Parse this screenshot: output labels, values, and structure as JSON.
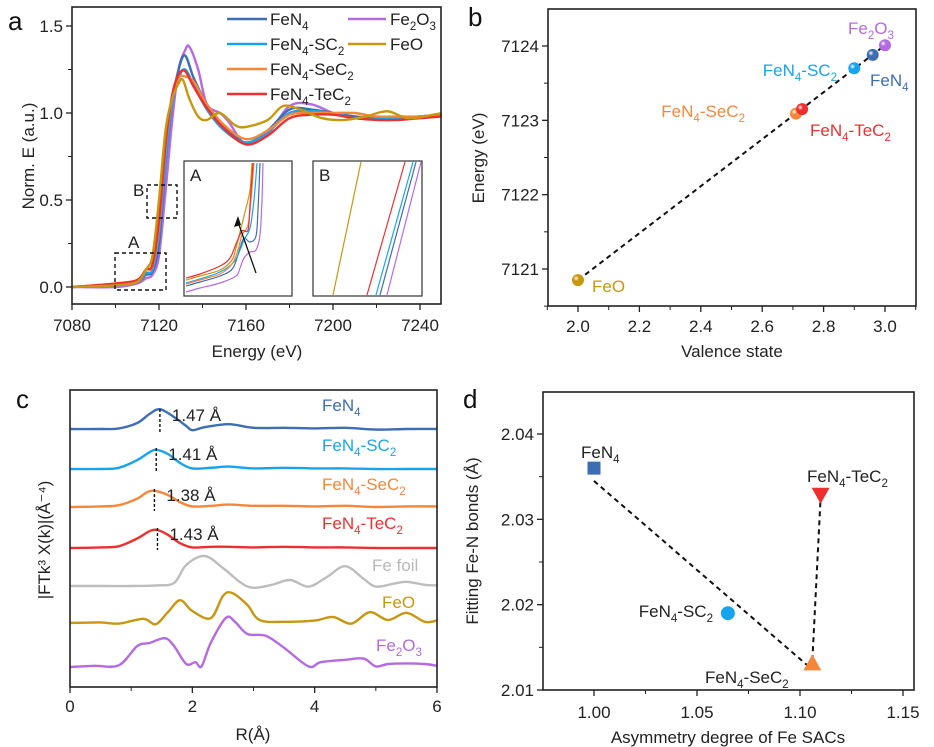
{
  "colors": {
    "FeN4": "#3d6db3",
    "FeN4-SC2": "#16a4ee",
    "FeN4-SeC2": "#f5873a",
    "FeN4-TeC2": "#ee2f2f",
    "Fe2O3": "#b56ae2",
    "FeO": "#c9970f",
    "Fe foil": "#bdbdbd",
    "axis": "#222222"
  },
  "chart_data": [
    {
      "panel": "a",
      "type": "line",
      "xlabel": "Energy (eV)",
      "ylabel": "Norm. E (a.u.)",
      "xlim": [
        7080,
        7250
      ],
      "ylim": [
        -0.1,
        1.6
      ],
      "xticks": [
        "7080",
        "7120",
        "7160",
        "7200",
        "7240"
      ],
      "xtick_values": [
        7080,
        7120,
        7160,
        7200,
        7240
      ],
      "yticks": [
        "0.0",
        "0.5",
        "1.0",
        "1.5"
      ],
      "ytick_values": [
        0.0,
        0.5,
        1.0,
        1.5
      ],
      "legend": [
        "FeN4",
        "FeN4-SC2",
        "FeN4-SeC2",
        "FeN4-TeC2",
        "Fe2O3",
        "FeO"
      ],
      "legend_position": "top-right",
      "series": [
        {
          "name": "FeN4",
          "x": [
            7080,
            7100,
            7110,
            7114,
            7117,
            7120,
            7123,
            7126,
            7129,
            7132,
            7136,
            7142,
            7150,
            7160,
            7170,
            7180,
            7190,
            7200,
            7210,
            7220,
            7230,
            7240,
            7250
          ],
          "y": [
            0,
            0.01,
            0.03,
            0.07,
            0.09,
            0.25,
            0.7,
            1.05,
            1.25,
            1.33,
            1.2,
            1.05,
            0.92,
            0.83,
            0.9,
            1.02,
            1.02,
            1.0,
            0.98,
            0.97,
            0.97,
            0.98,
            0.99
          ]
        },
        {
          "name": "FeN4-SC2",
          "x": [
            7080,
            7100,
            7110,
            7114,
            7117,
            7120,
            7123,
            7126,
            7129,
            7132,
            7136,
            7142,
            7150,
            7160,
            7170,
            7180,
            7190,
            7200,
            7210,
            7220,
            7230,
            7240,
            7250
          ],
          "y": [
            0,
            0.01,
            0.03,
            0.08,
            0.1,
            0.3,
            0.72,
            1.05,
            1.2,
            1.25,
            1.16,
            1.02,
            0.9,
            0.83,
            0.89,
            1.0,
            1.01,
            1.0,
            0.97,
            0.97,
            0.97,
            0.98,
            0.99
          ]
        },
        {
          "name": "FeN4-SeC2",
          "x": [
            7080,
            7100,
            7110,
            7114,
            7117,
            7120,
            7123,
            7126,
            7129,
            7132,
            7136,
            7142,
            7150,
            7160,
            7170,
            7180,
            7190,
            7200,
            7210,
            7220,
            7230,
            7240,
            7250
          ],
          "y": [
            0,
            0.02,
            0.04,
            0.1,
            0.12,
            0.35,
            0.8,
            1.08,
            1.2,
            1.21,
            1.18,
            1.05,
            0.93,
            0.85,
            0.9,
            0.99,
            1.0,
            1.0,
            1.0,
            0.98,
            0.98,
            0.98,
            0.99
          ]
        },
        {
          "name": "FeN4-TeC2",
          "x": [
            7080,
            7100,
            7110,
            7114,
            7117,
            7120,
            7123,
            7126,
            7129,
            7132,
            7136,
            7142,
            7150,
            7160,
            7170,
            7180,
            7190,
            7200,
            7210,
            7220,
            7230,
            7240,
            7250
          ],
          "y": [
            0,
            0.02,
            0.04,
            0.1,
            0.13,
            0.38,
            0.82,
            1.1,
            1.22,
            1.24,
            1.15,
            1.03,
            0.91,
            0.82,
            0.87,
            0.97,
            0.99,
            0.99,
            0.97,
            0.96,
            0.96,
            0.97,
            0.98
          ]
        },
        {
          "name": "Fe2O3",
          "x": [
            7080,
            7100,
            7110,
            7114,
            7117,
            7120,
            7123,
            7126,
            7129,
            7132,
            7134,
            7138,
            7142,
            7148,
            7152,
            7160,
            7170,
            7180,
            7190,
            7200,
            7210,
            7220,
            7230,
            7240,
            7250
          ],
          "y": [
            0,
            0.0,
            0.02,
            0.05,
            0.07,
            0.18,
            0.55,
            0.95,
            1.25,
            1.36,
            1.38,
            1.25,
            1.05,
            1.0,
            0.95,
            0.82,
            0.88,
            1.04,
            1.05,
            1.0,
            0.97,
            0.97,
            0.97,
            0.98,
            0.99
          ]
        },
        {
          "name": "FeO",
          "x": [
            7080,
            7100,
            7110,
            7114,
            7117,
            7120,
            7123,
            7126,
            7129,
            7131,
            7134,
            7138,
            7142,
            7148,
            7155,
            7160,
            7170,
            7177,
            7185,
            7195,
            7205,
            7215,
            7225,
            7235,
            7250
          ],
          "y": [
            0,
            0.01,
            0.03,
            0.1,
            0.18,
            0.5,
            0.9,
            1.08,
            1.17,
            1.19,
            1.08,
            0.98,
            0.96,
            1.0,
            0.93,
            0.92,
            0.96,
            1.04,
            1.02,
            0.97,
            0.96,
            0.98,
            1.01,
            0.97,
            1.0
          ]
        }
      ],
      "insets": [
        {
          "label": "A",
          "annotation": "arrow"
        },
        {
          "label": "B"
        }
      ],
      "boxes": [
        "A",
        "B"
      ]
    },
    {
      "panel": "b",
      "type": "scatter",
      "xlabel": "Valence state",
      "ylabel": "Energy (eV)",
      "xlim": [
        1.9,
        3.1
      ],
      "ylim": [
        7120.5,
        7124.5
      ],
      "xticks": [
        "2.0",
        "2.2",
        "2.4",
        "2.6",
        "2.8",
        "3.0"
      ],
      "xtick_values": [
        2.0,
        2.2,
        2.4,
        2.6,
        2.8,
        3.0
      ],
      "yticks": [
        "7121",
        "7122",
        "7123",
        "7124"
      ],
      "ytick_values": [
        7121,
        7122,
        7123,
        7124
      ],
      "points": [
        {
          "name": "FeO",
          "x": 2.0,
          "y": 7120.85
        },
        {
          "name": "FeN4-SeC2",
          "x": 2.71,
          "y": 7123.09
        },
        {
          "name": "FeN4-TeC2",
          "x": 2.73,
          "y": 7123.15
        },
        {
          "name": "FeN4-SC2",
          "x": 2.9,
          "y": 7123.7
        },
        {
          "name": "FeN4",
          "x": 2.96,
          "y": 7123.88
        },
        {
          "name": "Fe2O3",
          "x": 3.0,
          "y": 7124.01
        }
      ],
      "fit_line": {
        "from": [
          2.0,
          7120.85
        ],
        "to": [
          3.0,
          7124.01
        ],
        "style": "dashed"
      }
    },
    {
      "panel": "c",
      "type": "line",
      "xlabel": "R(Å)",
      "ylabel": "|FTk³ X(k)|(Å⁻⁴)",
      "xlim": [
        0,
        6
      ],
      "xticks": [
        "0",
        "2",
        "4",
        "6"
      ],
      "xtick_values": [
        0,
        2,
        4,
        6
      ],
      "annotations": [
        "1.47 Å",
        "1.41 Å",
        "1.38 Å",
        "1.43 Å"
      ],
      "peak_positions": [
        1.47,
        1.41,
        1.38,
        1.43
      ],
      "series": [
        {
          "name": "FeN4",
          "label": "FeN4",
          "x": [
            0,
            0.5,
            0.8,
            1.1,
            1.3,
            1.47,
            1.7,
            1.9,
            2.0,
            2.2,
            2.6,
            3.0,
            3.5,
            4.0,
            4.5,
            5.0,
            5.5,
            6.0
          ],
          "y": [
            0,
            0,
            0.01,
            0.1,
            0.25,
            0.33,
            0.2,
            0.05,
            -0.02,
            0.03,
            0.08,
            0.02,
            0.02,
            0.01,
            0.02,
            -0.01,
            0.0,
            0.0
          ]
        },
        {
          "name": "FeN4-SC2",
          "label": "FeN4-SC2",
          "x": [
            0,
            0.5,
            0.8,
            1.1,
            1.3,
            1.41,
            1.6,
            1.8,
            2.0,
            2.3,
            2.6,
            3.0,
            3.5,
            4.0,
            4.5,
            5.0,
            5.5,
            6.0
          ],
          "y": [
            0,
            0,
            0.02,
            0.15,
            0.28,
            0.32,
            0.25,
            0.1,
            0.01,
            0.02,
            0.04,
            0.01,
            0.02,
            0.01,
            0.01,
            0.0,
            0.0,
            0.0
          ]
        },
        {
          "name": "FeN4-SeC2",
          "label": "FeN4-SeC2",
          "x": [
            0,
            0.5,
            0.8,
            1.1,
            1.25,
            1.38,
            1.6,
            1.8,
            2.0,
            2.3,
            2.6,
            3.0,
            3.5,
            4.0,
            4.5,
            5.0,
            5.5,
            6.0
          ],
          "y": [
            0,
            0.01,
            0.03,
            0.14,
            0.24,
            0.27,
            0.2,
            0.08,
            0.01,
            0.02,
            0.04,
            0.02,
            0.02,
            0.01,
            0.02,
            0.0,
            0.01,
            0.01
          ]
        },
        {
          "name": "FeN4-TeC2",
          "label": "FeN4-TeC2",
          "x": [
            0,
            0.5,
            0.8,
            1.1,
            1.3,
            1.43,
            1.6,
            1.8,
            2.0,
            2.3,
            2.6,
            3.0,
            3.5,
            4.0,
            4.5,
            5.0,
            5.5,
            6.0
          ],
          "y": [
            0,
            0.01,
            0.03,
            0.16,
            0.28,
            0.3,
            0.22,
            0.08,
            0.01,
            0.02,
            0.02,
            0.01,
            0.02,
            0.01,
            0.01,
            0.0,
            0.0,
            0.0
          ]
        },
        {
          "name": "Fe foil",
          "label": "Fe foil",
          "x": [
            0,
            0.5,
            1.0,
            1.4,
            1.7,
            1.9,
            2.2,
            2.5,
            2.8,
            3.0,
            3.3,
            3.6,
            3.9,
            4.2,
            4.5,
            4.8,
            5.0,
            5.3,
            5.5,
            5.8,
            6.0
          ],
          "y": [
            0,
            0,
            0.0,
            0.01,
            0.05,
            0.35,
            0.5,
            0.3,
            0.05,
            -0.03,
            0.02,
            0.1,
            -0.01,
            0.15,
            0.33,
            0.12,
            -0.01,
            0.04,
            0.07,
            0.02,
            0.01
          ]
        },
        {
          "name": "FeO",
          "label": "FeO",
          "x": [
            0,
            0.5,
            0.8,
            1.2,
            1.4,
            1.6,
            1.8,
            2.0,
            2.3,
            2.5,
            2.65,
            2.9,
            3.1,
            3.5,
            4.0,
            4.3,
            4.6,
            4.9,
            5.2,
            5.5,
            5.8,
            6.0
          ],
          "y": [
            0,
            0.01,
            -0.01,
            0.07,
            -0.02,
            0.18,
            0.38,
            0.2,
            0.08,
            0.45,
            0.5,
            0.3,
            0.05,
            0.02,
            0.04,
            0.1,
            -0.01,
            0.18,
            0.05,
            0.17,
            0.02,
            0.04
          ]
        },
        {
          "name": "Fe2O3",
          "label": "Fe2O3",
          "x": [
            0,
            0.4,
            0.8,
            1.1,
            1.3,
            1.55,
            1.7,
            1.9,
            2.05,
            2.15,
            2.3,
            2.55,
            2.7,
            2.9,
            3.2,
            3.5,
            3.9,
            4.1,
            4.5,
            4.8,
            5.0,
            5.2,
            5.5,
            5.8,
            6.0
          ],
          "y": [
            0,
            0.02,
            0.03,
            0.35,
            0.4,
            0.48,
            0.35,
            0.05,
            0.08,
            0.01,
            0.4,
            0.82,
            0.75,
            0.55,
            0.52,
            0.32,
            0.01,
            0.08,
            0.12,
            0.14,
            0.01,
            0.05,
            0.06,
            0.05,
            0.02
          ]
        }
      ]
    },
    {
      "panel": "d",
      "type": "scatter",
      "xlabel": "Asymmetry degree of Fe SACs",
      "ylabel": "Fitting Fe-N bonds (Å)",
      "xlim": [
        0.975,
        1.155
      ],
      "ylim": [
        2.01,
        2.045
      ],
      "xticks": [
        "1.00",
        "1.05",
        "1.10",
        "1.15"
      ],
      "xtick_values": [
        1.0,
        1.05,
        1.1,
        1.15
      ],
      "yticks": [
        "2.01",
        "2.02",
        "2.03",
        "2.04"
      ],
      "ytick_values": [
        2.01,
        2.02,
        2.03,
        2.04
      ],
      "points": [
        {
          "name": "FeN4",
          "x": 1.0,
          "y": 2.036,
          "marker": "square"
        },
        {
          "name": "FeN4-SC2",
          "x": 1.065,
          "y": 2.019,
          "marker": "circle"
        },
        {
          "name": "FeN4-SeC2",
          "x": 1.106,
          "y": 2.013,
          "marker": "triangle-up"
        },
        {
          "name": "FeN4-TeC2",
          "x": 1.11,
          "y": 2.033,
          "marker": "triangle-down"
        }
      ],
      "fit_lines": [
        {
          "from": [
            1.0,
            2.0345
          ],
          "to": [
            1.104,
            2.0128
          ],
          "style": "dashed"
        },
        {
          "from": [
            1.106,
            2.0135
          ],
          "to": [
            1.11,
            2.0325
          ],
          "style": "dashed"
        }
      ]
    }
  ],
  "panels": {
    "a": "a",
    "b": "b",
    "c": "c",
    "d": "d"
  },
  "labels": {
    "FeN4": {
      "base": "FeN",
      "sub": "4",
      "rest": ""
    },
    "FeN4-SC2": {
      "base": "FeN",
      "sub": "4",
      "rest": "-SC",
      "sub2": "2"
    },
    "FeN4-SeC2": {
      "base": "FeN",
      "sub": "4",
      "rest": "-SeC",
      "sub2": "2"
    },
    "FeN4-TeC2": {
      "base": "FeN",
      "sub": "4",
      "rest": "-TeC",
      "sub2": "2"
    },
    "Fe2O3": {
      "base": "Fe",
      "sub": "2",
      "rest": "O",
      "sub2": "3"
    },
    "FeO": {
      "base": "FeO"
    },
    "Fe foil": {
      "base": "Fe foil"
    }
  }
}
